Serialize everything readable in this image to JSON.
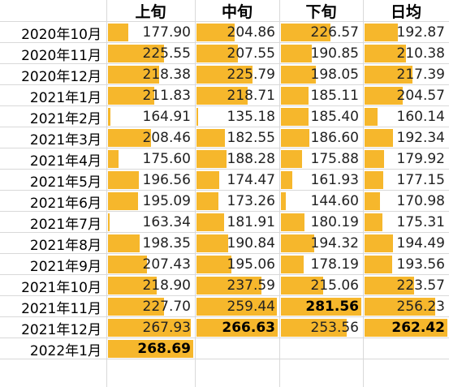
{
  "headers": [
    "上旬",
    "中旬",
    "下旬",
    "日均"
  ],
  "rows": [
    {
      "label": "2020年10月",
      "values": [
        "177.90",
        "204.86",
        "226.57",
        "192.87"
      ],
      "fills": [
        0.24,
        0.47,
        0.62,
        0.4
      ]
    },
    {
      "label": "2020年11月",
      "values": [
        "225.55",
        "207.55",
        "190.85",
        "210.38"
      ],
      "fills": [
        0.66,
        0.51,
        0.38,
        0.5
      ]
    },
    {
      "label": "2020年12月",
      "values": [
        "218.38",
        "225.79",
        "198.05",
        "217.39"
      ],
      "fills": [
        0.6,
        0.69,
        0.43,
        0.58
      ]
    },
    {
      "label": "2021年1月",
      "values": [
        "211.83",
        "218.71",
        "185.11",
        "204.57"
      ],
      "fills": [
        0.54,
        0.63,
        0.34,
        0.46
      ]
    },
    {
      "label": "2021年2月",
      "values": [
        "164.91",
        "135.18",
        "185.40",
        "160.14"
      ],
      "fills": [
        0.03,
        0.0,
        0.34,
        0.16
      ]
    },
    {
      "label": "2021年3月",
      "values": [
        "208.46",
        "182.55",
        "186.60",
        "192.34"
      ],
      "fills": [
        0.5,
        0.35,
        0.35,
        0.34
      ]
    },
    {
      "label": "2021年4月",
      "values": [
        "175.60",
        "188.28",
        "175.88",
        "179.92"
      ],
      "fills": [
        0.12,
        0.37,
        0.26,
        0.24
      ]
    },
    {
      "label": "2021年5月",
      "values": [
        "196.56",
        "174.47",
        "161.93",
        "177.15"
      ],
      "fills": [
        0.36,
        0.28,
        0.14,
        0.23
      ]
    },
    {
      "label": "2021年6月",
      "values": [
        "195.09",
        "173.26",
        "144.60",
        "170.98"
      ],
      "fills": [
        0.35,
        0.27,
        0.06,
        0.19
      ]
    },
    {
      "label": "2021年7月",
      "values": [
        "163.34",
        "181.91",
        "180.19",
        "175.31"
      ],
      "fills": [
        0.0,
        0.34,
        0.29,
        0.22
      ]
    },
    {
      "label": "2021年8月",
      "values": [
        "198.35",
        "190.84",
        "194.32",
        "194.49"
      ],
      "fills": [
        0.37,
        0.39,
        0.41,
        0.34
      ]
    },
    {
      "label": "2021年9月",
      "values": [
        "207.43",
        "195.06",
        "178.19",
        "193.56"
      ],
      "fills": [
        0.46,
        0.43,
        0.28,
        0.33
      ]
    },
    {
      "label": "2021年10月",
      "values": [
        "218.90",
        "237.59",
        "215.06",
        "223.57"
      ],
      "fills": [
        0.57,
        0.8,
        0.53,
        0.6
      ]
    },
    {
      "label": "2021年11月",
      "values": [
        "227.70",
        "259.44",
        "281.56",
        "256.23"
      ],
      "fills": [
        0.66,
        0.99,
        1.0,
        0.85
      ]
    },
    {
      "label": "2021年12月",
      "values": [
        "267.93",
        "266.63",
        "253.56",
        "262.42"
      ],
      "fills": [
        0.97,
        1.0,
        0.82,
        1.0
      ]
    },
    {
      "label": "2022年1月",
      "values": [
        "268.69",
        "",
        "",
        ""
      ],
      "fills": [
        1.0,
        0,
        0,
        0
      ]
    }
  ],
  "highlighted": [
    [
      15,
      0
    ],
    [
      14,
      1
    ],
    [
      13,
      2
    ],
    [
      14,
      3
    ]
  ],
  "colors": {
    "bar": "#f6b72c",
    "grid": "#d9d9d9"
  }
}
